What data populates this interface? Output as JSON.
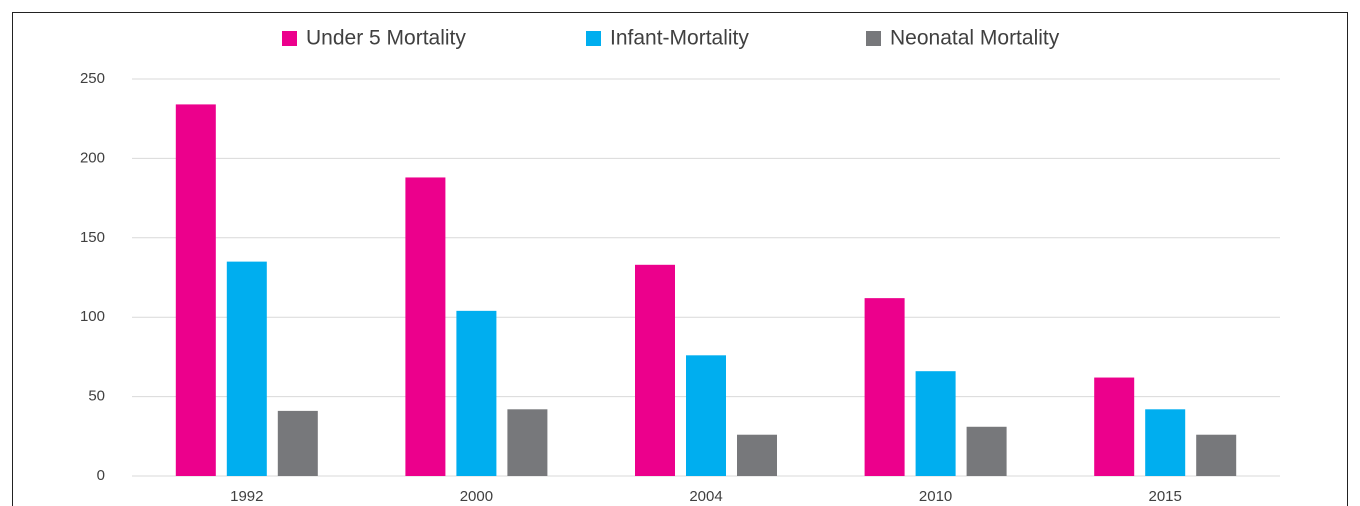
{
  "chart_data": {
    "type": "bar",
    "categories": [
      "1992",
      "2000",
      "2004",
      "2010",
      "2015"
    ],
    "series": [
      {
        "name": "Under 5 Mortality",
        "color": "#ec008c",
        "values": [
          234,
          188,
          133,
          112,
          62
        ]
      },
      {
        "name": "Infant-Mortality",
        "color": "#00aeef",
        "values": [
          135,
          104,
          76,
          66,
          42
        ]
      },
      {
        "name": "Neonatal Mortality",
        "color": "#77787b",
        "values": [
          41,
          42,
          26,
          31,
          26
        ]
      }
    ],
    "ylim": [
      0,
      250
    ],
    "yticks": [
      0,
      50,
      100,
      150,
      200,
      250
    ],
    "grid": true,
    "legend": "top"
  }
}
